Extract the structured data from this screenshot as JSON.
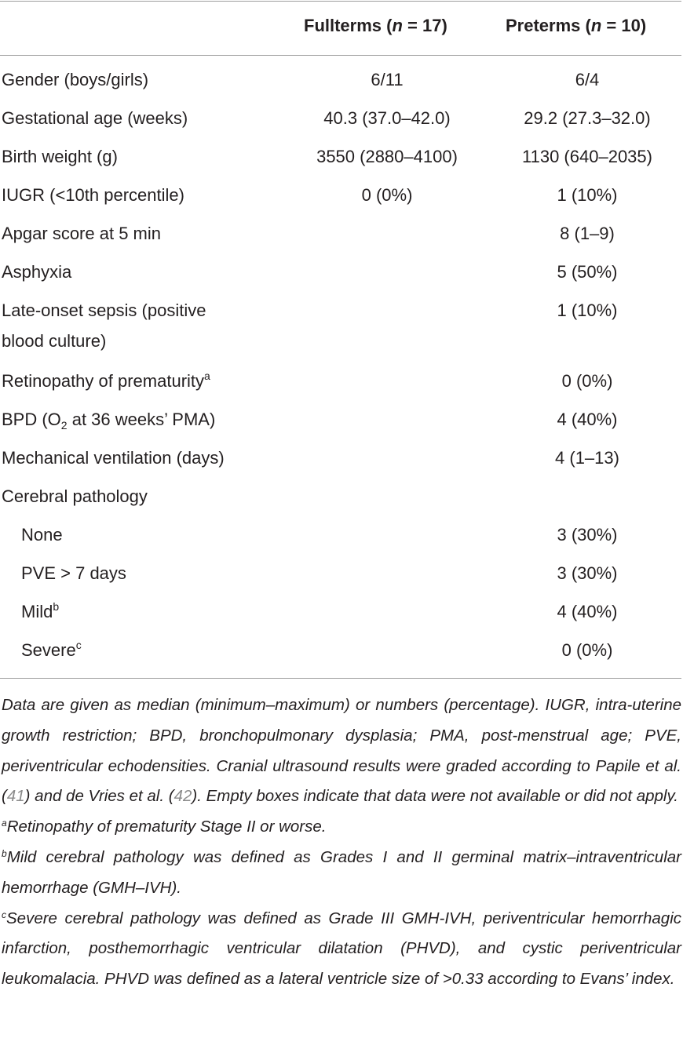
{
  "header": {
    "col1": {
      "label": "Fullterms (",
      "n": "n",
      "rest": " = 17)"
    },
    "col2": {
      "label": "Preterms (",
      "n": "n",
      "rest": " = 10)"
    }
  },
  "rows": [
    {
      "label": "Gender (boys/girls)",
      "full": "6/11",
      "pre": "6/4"
    },
    {
      "label": "Gestational age (weeks)",
      "full": "40.3 (37.0–42.0)",
      "pre": "29.2 (27.3–32.0)"
    },
    {
      "label": "Birth weight (g)",
      "full": "3550 (2880–4100)",
      "pre": "1130 (640–2035)"
    },
    {
      "label": "IUGR (<10th percentile)",
      "full": "0 (0%)",
      "pre": "1 (10%)"
    },
    {
      "label": "Apgar score at 5 min",
      "full": "",
      "pre": "8 (1–9)"
    },
    {
      "label": "Asphyxia",
      "full": "",
      "pre": "5 (50%)"
    },
    {
      "label": "Late-onset sepsis (positive blood culture)",
      "full": "",
      "pre": "1 (10%)"
    },
    {
      "label": "Retinopathy of prematurity",
      "sup": "a",
      "full": "",
      "pre": "0 (0%)"
    },
    {
      "label_pre": "BPD (O",
      "sub": "2",
      "label_post": " at 36 weeks’ PMA)",
      "full": "",
      "pre": "4 (40%)"
    },
    {
      "label": "Mechanical ventilation (days)",
      "full": "",
      "pre": "4 (1–13)"
    },
    {
      "label": "Cerebral pathology",
      "full": "",
      "pre": ""
    },
    {
      "label": "None",
      "full": "",
      "pre": "3 (30%)"
    },
    {
      "label": "PVE > 7 days",
      "full": "",
      "pre": "3 (30%)"
    },
    {
      "label": "Mild",
      "sup": "b",
      "full": "",
      "pre": "4 (40%)"
    },
    {
      "label": "Severe",
      "sup": "c",
      "full": "",
      "pre": "0 (0%)"
    }
  ],
  "notes": {
    "main_a": "Data are given as median (minimum–maximum) or numbers (percentage). IUGR, intra-uterine growth restriction; BPD, bronchopulmonary dysplasia; PMA, post-menstrual age; PVE, periventricular echodensities. Cranial ultrasound results were graded according to Papile et al. (",
    "ref1": "41",
    "main_b": ") and de Vries et al. (",
    "ref2": "42",
    "main_c": "). Empty boxes indicate that data were not available or did not apply.",
    "a_mark": "a",
    "a_text": "Retinopathy of prematurity Stage II or worse.",
    "b_mark": "b",
    "b_text": "Mild cerebral pathology was defined as Grades I and II germinal matrix–intraventricular hemorrhage (GMH–IVH).",
    "c_mark": "c",
    "c_text": "Severe cerebral pathology was defined as Grade III GMH-IVH, periventricular hemorrhagic infarction, posthemorrhagic ventricular dilatation (PHVD), and cystic periventricular leukomalacia. PHVD was defined as a lateral ventricle size of >0.33 according to Evans’ index."
  }
}
